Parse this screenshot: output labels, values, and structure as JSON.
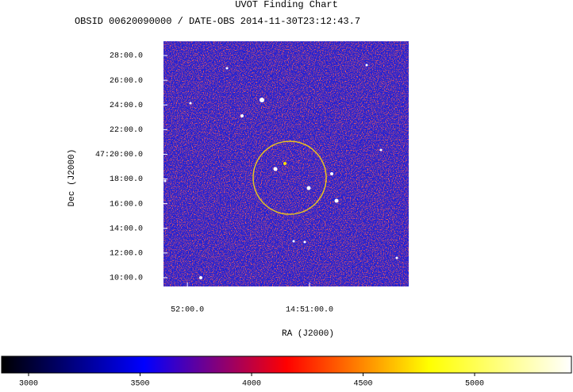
{
  "chart_data": {
    "type": "image",
    "title": "UVOT Finding Chart",
    "subtitle": "OBSID 00620090000 / DATE-OBS 2014-11-30T23:12:43.7",
    "xlabel": "RA (J2000)",
    "ylabel": "Dec (J2000)",
    "xlim": [
      223.049,
      222.547
    ],
    "xticks": [
      {
        "value": 223.0,
        "label": "52:00.0"
      },
      {
        "value": 222.75,
        "label": "14:51:00.0"
      }
    ],
    "ylim": [
      47.1548,
      47.486
    ],
    "yticks": [
      {
        "value": 47.466667,
        "label": "28:00.0"
      },
      {
        "value": 47.433333,
        "label": "26:00.0"
      },
      {
        "value": 47.4,
        "label": "24:00.0"
      },
      {
        "value": 47.366667,
        "label": "22:00.0"
      },
      {
        "value": 47.333333,
        "label": "47:20:00.0"
      },
      {
        "value": 47.3,
        "label": "18:00.0"
      },
      {
        "value": 47.266667,
        "label": "16:00.0"
      },
      {
        "value": 47.233333,
        "label": "14:00.0"
      },
      {
        "value": 47.2,
        "label": "12:00.0"
      },
      {
        "value": 47.166667,
        "label": "10:00.0"
      }
    ],
    "colorbar": {
      "clim": [
        2879,
        5434
      ],
      "ticks": [
        3000,
        3500,
        4000,
        4500,
        5000
      ],
      "colors": [
        "#000000",
        "#0000ff",
        "#ff0000",
        "#ffff00",
        "#ffffff"
      ]
    }
  }
}
